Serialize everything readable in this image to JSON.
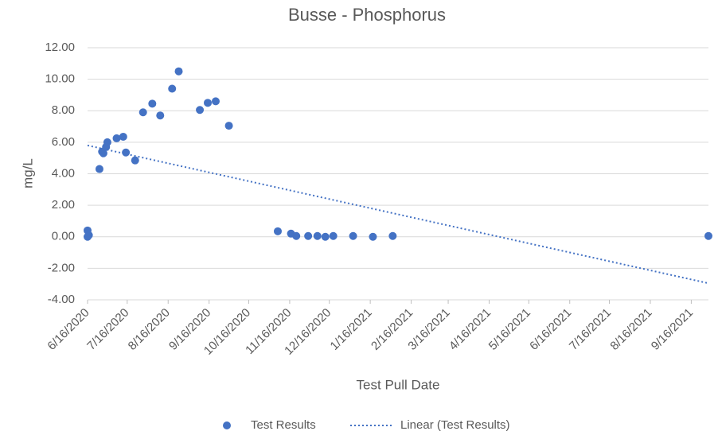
{
  "chart_data": {
    "type": "scatter",
    "title": "Busse - Phosphorus",
    "x_label": "Test Pull Date",
    "y_label": "mg/L",
    "xlim": [
      "6/16/2020",
      "9/29/2021"
    ],
    "xticks": [
      "6/16/2020",
      "7/16/2020",
      "8/16/2020",
      "9/16/2020",
      "10/16/2020",
      "11/16/2020",
      "12/16/2020",
      "1/16/2021",
      "2/16/2021",
      "3/16/2021",
      "4/16/2021",
      "5/16/2021",
      "6/16/2021",
      "7/16/2021",
      "8/16/2021",
      "9/16/2021"
    ],
    "ylim": [
      -4,
      12
    ],
    "yticks": [
      {
        "value": -4,
        "label": "-4.00"
      },
      {
        "value": -2,
        "label": "-2.00"
      },
      {
        "value": 0,
        "label": "0.00"
      },
      {
        "value": 2,
        "label": "2.00"
      },
      {
        "value": 4,
        "label": "4.00"
      },
      {
        "value": 6,
        "label": "6.00"
      },
      {
        "value": 8,
        "label": "8.00"
      },
      {
        "value": 10,
        "label": "10.00"
      },
      {
        "value": 12,
        "label": "12.00"
      }
    ],
    "grid": true,
    "legend": "bottom",
    "series": [
      {
        "name": "Test Results",
        "color": "#4472c4",
        "x": [
          "6/16/2020",
          "6/16/2020",
          "6/17/2020",
          "6/25/2020",
          "6/27/2020",
          "6/28/2020",
          "6/30/2020",
          "7/1/2020",
          "7/8/2020",
          "7/13/2020",
          "7/15/2020",
          "7/22/2020",
          "7/28/2020",
          "8/4/2020",
          "8/10/2020",
          "8/19/2020",
          "8/24/2020",
          "9/9/2020",
          "9/15/2020",
          "9/21/2020",
          "10/1/2020",
          "11/7/2020",
          "11/17/2020",
          "11/21/2020",
          "11/30/2020",
          "12/7/2020",
          "12/13/2020",
          "12/19/2020",
          "1/3/2021",
          "1/18/2021",
          "2/2/2021",
          "9/29/2021"
        ],
        "values": [
          0,
          0.4,
          0.1,
          4.3,
          5.4,
          5.3,
          5.7,
          6.0,
          6.25,
          6.35,
          5.35,
          4.85,
          7.9,
          8.45,
          7.7,
          9.4,
          10.5,
          8.05,
          8.5,
          8.6,
          7.05,
          0.35,
          0.2,
          0.05,
          0.05,
          0.05,
          0,
          0.05,
          0.05,
          0,
          0.05,
          0.05
        ]
      },
      {
        "name": "Linear (Test Results)",
        "color": "#4472c4",
        "type": "line",
        "dash": "dotted",
        "x": [
          "6/16/2020",
          "9/29/2021"
        ],
        "values": [
          5.8,
          -2.95
        ]
      }
    ]
  }
}
